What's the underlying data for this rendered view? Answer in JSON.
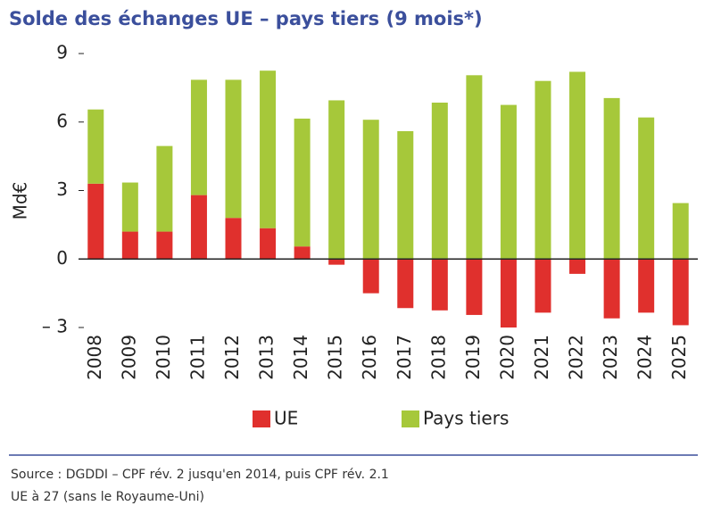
{
  "chart_data": {
    "type": "bar",
    "stacked": true,
    "title": "Solde des échanges UE – pays tiers (9 mois*)",
    "y_label": "Md€",
    "categories": [
      "2008",
      "2009",
      "2010",
      "2011",
      "2012",
      "2013",
      "2014",
      "2015",
      "2016",
      "2017",
      "2018",
      "2019",
      "2020",
      "2021",
      "2022",
      "2023",
      "2024",
      "2025"
    ],
    "series": [
      {
        "name": "UE",
        "color": "#e0302d",
        "values": [
          3.3,
          1.2,
          1.2,
          2.8,
          1.8,
          1.35,
          0.55,
          -0.25,
          -1.5,
          -2.15,
          -2.25,
          -2.45,
          -3.0,
          -2.35,
          -0.65,
          -2.6,
          -2.35,
          -2.9
        ]
      },
      {
        "name": "Pays tiers",
        "color": "#a6c83a",
        "values": [
          3.25,
          2.15,
          3.75,
          5.05,
          6.05,
          6.9,
          5.6,
          6.95,
          6.1,
          5.6,
          6.85,
          8.05,
          6.75,
          7.8,
          8.2,
          7.05,
          6.2,
          2.45
        ]
      }
    ],
    "ylim": [
      -3,
      9
    ],
    "yticks": [
      {
        "value": -3,
        "label": "– 3"
      },
      0,
      3,
      6,
      9
    ],
    "source": [
      "Source : DGDDI – CPF rév. 2 jusqu'en 2014, puis CPF rév. 2.1",
      "UE à 27 (sans le Royaume-Uni)"
    ]
  }
}
